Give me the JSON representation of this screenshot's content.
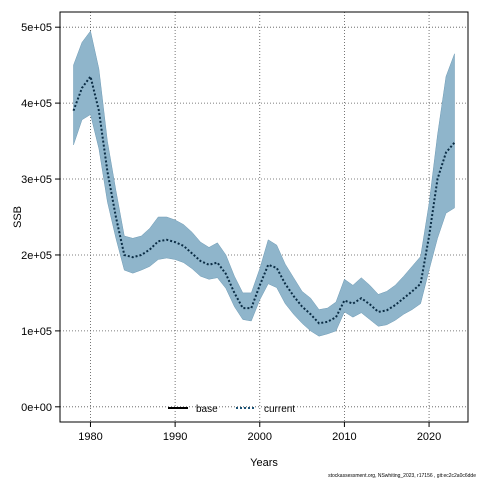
{
  "chart_data": {
    "type": "line",
    "xlabel": "Years",
    "ylabel": "SSB",
    "xlim": [
      1976.4,
      2024.6
    ],
    "ylim": [
      -20000,
      520000
    ],
    "x_ticks": [
      1980,
      1990,
      2000,
      2010,
      2020
    ],
    "x_tick_labels": [
      "1980",
      "1990",
      "2000",
      "2010",
      "2020"
    ],
    "y_ticks": [
      0,
      100000,
      200000,
      300000,
      400000,
      500000
    ],
    "y_tick_labels": [
      "0e+00",
      "1e+05",
      "2e+05",
      "3e+05",
      "4e+05",
      "5e+05"
    ],
    "grid": true,
    "legend_position": "bottom-center",
    "legend": [
      {
        "label": "base",
        "style": "solid",
        "color": "#000000"
      },
      {
        "label": "current",
        "style": "dotted",
        "color": "#1a5276"
      }
    ],
    "band_color": "#8fb5cb",
    "years": [
      1978,
      1979,
      1980,
      1981,
      1982,
      1983,
      1984,
      1985,
      1986,
      1987,
      1988,
      1989,
      1990,
      1991,
      1992,
      1993,
      1994,
      1995,
      1996,
      1997,
      1998,
      1999,
      2000,
      2001,
      2002,
      2003,
      2004,
      2005,
      2006,
      2007,
      2008,
      2009,
      2010,
      2011,
      2012,
      2013,
      2014,
      2015,
      2016,
      2017,
      2018,
      2019,
      2020,
      2021,
      2022,
      2023
    ],
    "series": [
      {
        "name": "current",
        "values": [
          390000,
          420000,
          435000,
          390000,
          310000,
          250000,
          200000,
          197000,
          200000,
          207000,
          218000,
          220000,
          217000,
          212000,
          202000,
          192000,
          187000,
          190000,
          175000,
          150000,
          130000,
          130000,
          160000,
          187000,
          183000,
          162000,
          146000,
          132000,
          122000,
          110000,
          112000,
          118000,
          140000,
          136000,
          143000,
          135000,
          125000,
          127000,
          134000,
          143000,
          152000,
          162000,
          225000,
          300000,
          335000,
          348000
        ],
        "lower": [
          345000,
          378000,
          385000,
          340000,
          270000,
          222000,
          180000,
          176000,
          180000,
          185000,
          194000,
          196000,
          194000,
          190000,
          182000,
          172000,
          168000,
          170000,
          156000,
          132000,
          115000,
          113000,
          141000,
          162000,
          157000,
          136000,
          122000,
          110000,
          100000,
          93000,
          96000,
          100000,
          125000,
          118000,
          124000,
          115000,
          106000,
          108000,
          114000,
          122000,
          128000,
          136000,
          180000,
          222000,
          255000,
          262000
        ],
        "upper": [
          450000,
          480000,
          495000,
          445000,
          350000,
          285000,
          225000,
          222000,
          225000,
          235000,
          250000,
          250000,
          246000,
          240000,
          230000,
          217000,
          210000,
          216000,
          200000,
          172000,
          150000,
          150000,
          182000,
          220000,
          213000,
          188000,
          170000,
          152000,
          143000,
          128000,
          130000,
          138000,
          168000,
          160000,
          170000,
          160000,
          148000,
          152000,
          160000,
          172000,
          185000,
          198000,
          268000,
          358000,
          435000,
          465000
        ]
      }
    ]
  },
  "footer": "stockassessment.org, NSwhiting_2023, r17156 , git:ec2c2a0c6dde"
}
